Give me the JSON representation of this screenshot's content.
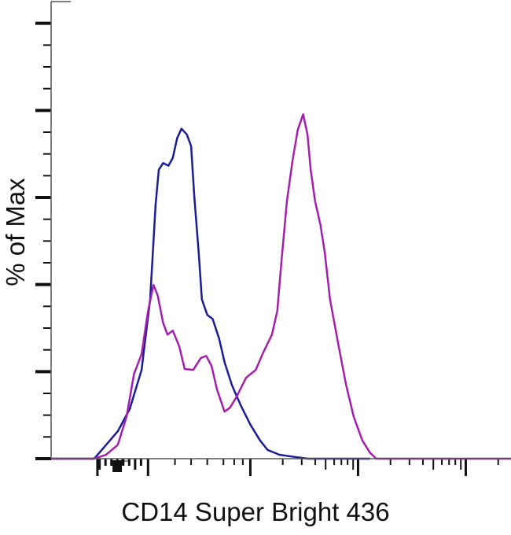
{
  "chart_data": {
    "type": "line",
    "title": "",
    "xlabel": "CD14 Super Bright 436",
    "ylabel": "% of Max",
    "x_scale": "log10 (biexponential display)",
    "xlim": [
      1.15,
      5.42
    ],
    "ylim": [
      0,
      105
    ],
    "y_major_step": 20,
    "y_minor_step": 5,
    "x_major_ticks": [
      1.58,
      2.05,
      3,
      4,
      5
    ],
    "tick_labels_shown": false,
    "grid": false,
    "legend": "none",
    "series": [
      {
        "color": "#1c1c96",
        "x": [
          1.15,
          1.55,
          1.63,
          1.77,
          1.88,
          1.99,
          2.07,
          2.12,
          2.15,
          2.19,
          2.24,
          2.28,
          2.32,
          2.36,
          2.41,
          2.45,
          2.48,
          2.52,
          2.55,
          2.6,
          2.65,
          2.71,
          2.76,
          2.83,
          2.91,
          3.0,
          3.09,
          3.16,
          3.27,
          3.38,
          3.53,
          4.11
        ],
        "y": [
          0,
          0,
          2.3,
          6.3,
          11.4,
          20.4,
          36.6,
          58.3,
          66.4,
          67.9,
          67.3,
          69.1,
          73.6,
          75.8,
          74.5,
          71.8,
          60.1,
          47.5,
          36.6,
          33.0,
          32.1,
          27.6,
          22.2,
          16.8,
          12.3,
          7.8,
          4.2,
          2.0,
          0.9,
          0.5,
          0,
          0
        ]
      },
      {
        "color": "#a41fac",
        "x": [
          1.15,
          1.55,
          1.66,
          1.77,
          1.85,
          1.92,
          1.99,
          2.05,
          2.1,
          2.14,
          2.19,
          2.23,
          2.28,
          2.34,
          2.39,
          2.47,
          2.54,
          2.59,
          2.64,
          2.69,
          2.76,
          2.81,
          2.87,
          2.96,
          3.05,
          3.12,
          3.2,
          3.25,
          3.29,
          3.34,
          3.39,
          3.44,
          3.49,
          3.53,
          3.56,
          3.6,
          3.65,
          3.69,
          3.74,
          3.82,
          3.89,
          3.96,
          4.04,
          4.11,
          4.17,
          5.42
        ],
        "y": [
          0,
          0,
          0.9,
          3.2,
          9.6,
          19.5,
          24.0,
          33.9,
          39.9,
          37.5,
          31.2,
          28.5,
          29.4,
          25.8,
          20.6,
          20.4,
          23.1,
          23.6,
          21.3,
          15.9,
          10.8,
          11.7,
          14.1,
          18.6,
          20.4,
          24.4,
          28.5,
          33.9,
          45.7,
          59.2,
          68.2,
          75.5,
          79.1,
          74.5,
          66.4,
          59.2,
          53.8,
          47.5,
          36.6,
          25.8,
          16.8,
          9.6,
          4.2,
          1.4,
          0,
          0
        ]
      }
    ]
  }
}
